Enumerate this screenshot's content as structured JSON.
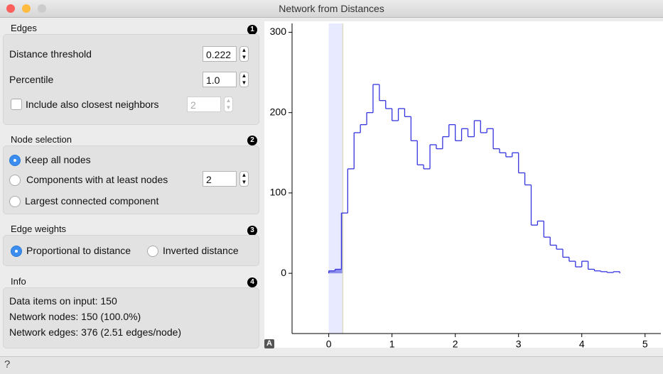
{
  "window": {
    "title": "Network from Distances",
    "help": "?"
  },
  "edges": {
    "title": "Edges",
    "badge": "1",
    "distance_threshold": {
      "label": "Distance threshold",
      "value": "0.222"
    },
    "percentile": {
      "label": "Percentile",
      "value": "1.0"
    },
    "closest_neighbors": {
      "label": "Include also closest neighbors",
      "value": "2"
    }
  },
  "node_selection": {
    "title": "Node selection",
    "badge": "2",
    "options": [
      "Keep all nodes",
      "Components with at least nodes",
      "Largest connected component"
    ],
    "min_nodes": "2"
  },
  "edge_weights": {
    "title": "Edge weights",
    "badge": "3",
    "options": [
      "Proportional to distance",
      "Inverted distance"
    ]
  },
  "info": {
    "title": "Info",
    "badge": "4",
    "lines": [
      "Data items on input: 150",
      "Network nodes: 150 (100.0%)",
      "Network edges: 376 (2.51 edges/node)"
    ]
  },
  "plot_button": "A",
  "chart_data": {
    "type": "histogram",
    "color": "#3535e0",
    "bins": [
      0,
      0.1,
      0.2,
      0.3,
      0.4,
      0.5,
      0.6,
      0.7,
      0.8,
      0.9,
      1.0,
      1.1,
      1.2,
      1.3,
      1.4,
      1.5,
      1.6,
      1.7,
      1.8,
      1.9,
      2.0,
      2.1,
      2.2,
      2.3,
      2.4,
      2.5,
      2.6,
      2.7,
      2.8,
      2.9,
      3.0,
      3.1,
      3.2,
      3.3,
      3.4,
      3.5,
      3.6,
      3.7,
      3.8,
      3.9,
      4.0,
      4.1,
      4.2,
      4.3,
      4.4,
      4.5,
      4.6
    ],
    "counts": [
      3,
      5,
      75,
      130,
      175,
      185,
      200,
      235,
      215,
      205,
      190,
      205,
      195,
      165,
      135,
      130,
      160,
      155,
      170,
      185,
      165,
      180,
      170,
      190,
      175,
      180,
      155,
      150,
      145,
      150,
      125,
      110,
      60,
      65,
      45,
      35,
      30,
      20,
      15,
      8,
      15,
      5,
      3,
      2,
      1,
      2
    ],
    "xlim": [
      -0.58,
      5.25
    ],
    "ylim": [
      -75,
      311
    ],
    "xticks": [
      0,
      1,
      2,
      3,
      4,
      5
    ],
    "yticks": [
      0,
      100,
      200,
      300
    ]
  }
}
